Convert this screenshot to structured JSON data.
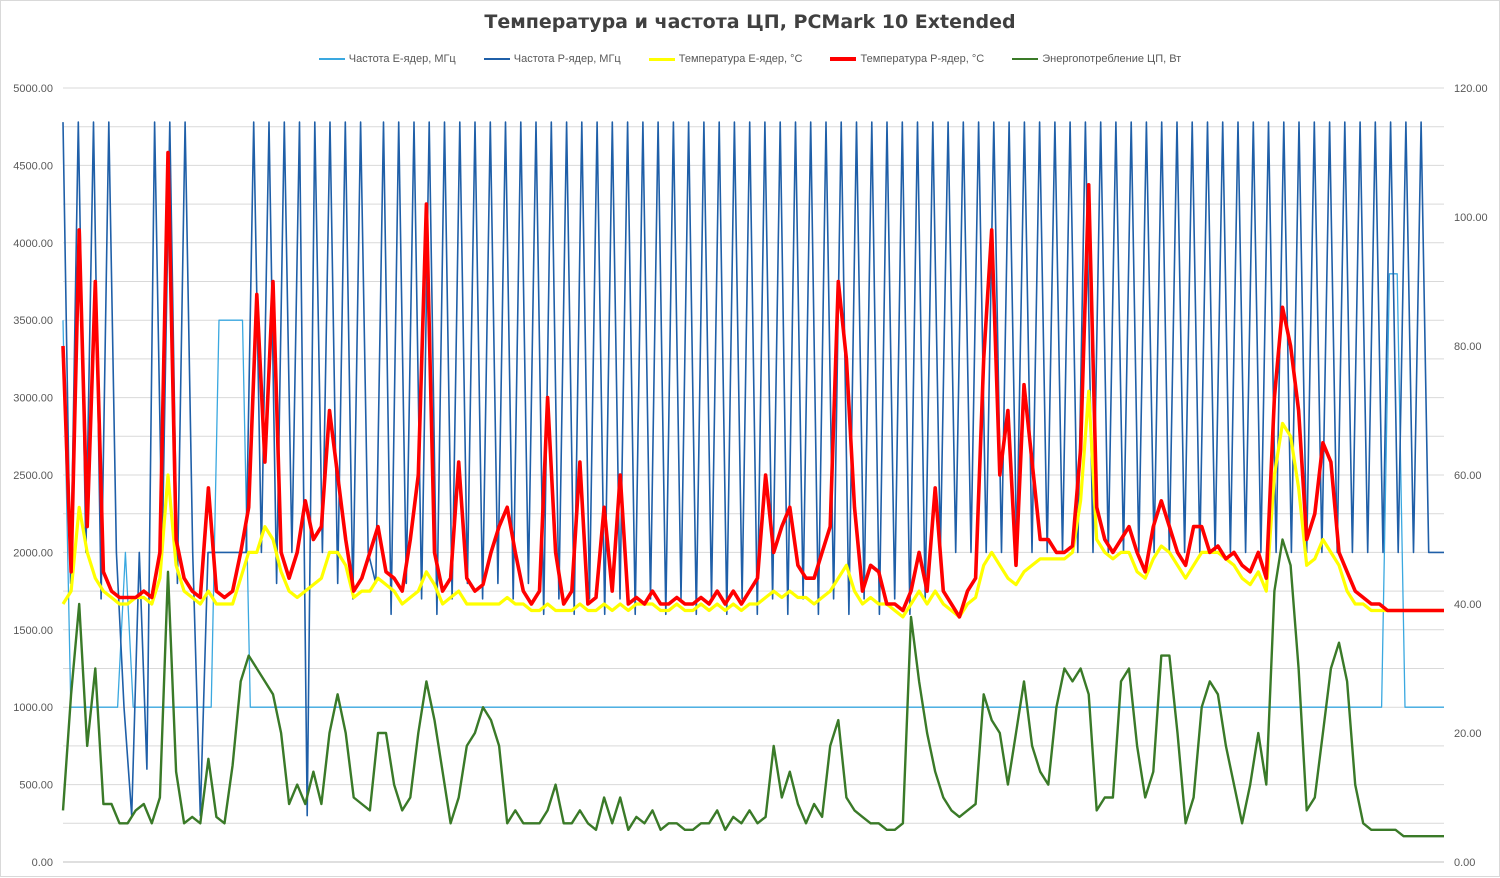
{
  "chart_data": {
    "type": "line",
    "title": "Температура и частота ЦП, PCMark 10 Extended",
    "xlabel": "",
    "ylabel": "",
    "y_left": {
      "ylim": [
        0,
        5000
      ],
      "ticks": [
        "0.00",
        "500.00",
        "1000.00",
        "1500.00",
        "2000.00",
        "2500.00",
        "3000.00",
        "3500.00",
        "4000.00",
        "4500.00",
        "5000.00"
      ]
    },
    "y_right": {
      "ylim": [
        0,
        120
      ],
      "ticks": [
        "0.00",
        "20.00",
        "40.00",
        "60.00",
        "80.00",
        "100.00",
        "120.00"
      ]
    },
    "grid": true,
    "legend_position": "top",
    "series": [
      {
        "name": "Частота E-ядер, МГц",
        "axis": "left",
        "color": "#3aa8e0",
        "values": [
          3500,
          1000,
          1000,
          1000,
          1000,
          1000,
          1000,
          1000,
          2000,
          1000,
          1000,
          1000,
          1000,
          1000,
          1000,
          1000,
          1000,
          1000,
          1000,
          1000,
          3500,
          3500,
          3500,
          3500,
          1000,
          1000,
          1000,
          1000,
          1000,
          1000,
          1000,
          1000,
          1000,
          1000,
          1000,
          1000,
          1000,
          1000,
          1000,
          1000,
          1000,
          1000,
          1000,
          1000,
          1000,
          1000,
          1000,
          1000,
          1000,
          1000,
          1000,
          1000,
          1000,
          1000,
          1000,
          1000,
          1000,
          1000,
          1000,
          1000,
          1000,
          1000,
          1000,
          1000,
          1000,
          1000,
          1000,
          1000,
          1000,
          1000,
          1000,
          1000,
          1000,
          1000,
          1000,
          1000,
          1000,
          1000,
          1000,
          1000,
          1000,
          1000,
          1000,
          1000,
          1000,
          1000,
          1000,
          1000,
          1000,
          1000,
          1000,
          1000,
          1000,
          1000,
          1000,
          1000,
          1000,
          1000,
          1000,
          1000,
          1000,
          1000,
          1000,
          1000,
          1000,
          1000,
          1000,
          1000,
          1000,
          1000,
          1000,
          1000,
          1000,
          1000,
          1000,
          1000,
          1000,
          1000,
          1000,
          1000,
          1000,
          1000,
          1000,
          1000,
          1000,
          1000,
          1000,
          1000,
          1000,
          1000,
          1000,
          1000,
          1000,
          1000,
          1000,
          1000,
          1000,
          1000,
          1000,
          1000,
          1000,
          1000,
          1000,
          1000,
          1000,
          1000,
          1000,
          1000,
          1000,
          1000,
          1000,
          1000,
          1000,
          1000,
          1000,
          1000,
          1000,
          1000,
          1000,
          1000,
          1000,
          1000,
          1000,
          1000,
          1000,
          1000,
          1000,
          1000,
          1000,
          1000,
          3800,
          3800,
          1000,
          1000,
          1000,
          1000,
          1000,
          1000
        ]
      },
      {
        "name": "Частота P-ядер, МГц",
        "axis": "left",
        "color": "#1f5fa8",
        "values": [
          4780,
          1800,
          4780,
          2000,
          4780,
          1700,
          4780,
          2000,
          1000,
          300,
          2000,
          600,
          4780,
          2000,
          4780,
          1800,
          4780,
          2000,
          300,
          2000,
          2000,
          2000,
          2000,
          2000,
          2000,
          4780,
          2000,
          4780,
          1800,
          4780,
          2000,
          4780,
          300,
          4780,
          2000,
          4780,
          1800,
          4780,
          1700,
          4780,
          2000,
          1800,
          4780,
          1600,
          4780,
          1800,
          4780,
          1700,
          4780,
          1600,
          4780,
          1700,
          4780,
          1800,
          4780,
          1700,
          4780,
          1800,
          4780,
          1700,
          4780,
          1800,
          4780,
          1600,
          4780,
          1700,
          4780,
          1600,
          4780,
          1700,
          4780,
          1600,
          4780,
          1700,
          4780,
          1600,
          4780,
          1700,
          4780,
          1600,
          4780,
          1700,
          4780,
          1600,
          4780,
          1700,
          4780,
          1600,
          4780,
          1700,
          4780,
          1600,
          4780,
          1700,
          4780,
          1600,
          4780,
          1700,
          4780,
          1600,
          4780,
          1700,
          4780,
          1600,
          4780,
          1700,
          4780,
          1600,
          4780,
          1700,
          4780,
          1600,
          4780,
          1700,
          4780,
          2000,
          4780,
          2000,
          4780,
          2000,
          4780,
          2000,
          4780,
          2000,
          4780,
          2000,
          4780,
          2000,
          4780,
          2000,
          4780,
          2000,
          4780,
          2000,
          4780,
          2000,
          4780,
          2000,
          4780,
          2000,
          4780,
          2000,
          4780,
          2000,
          4780,
          2000,
          4780,
          2000,
          4780,
          2000,
          4780,
          2000,
          4780,
          2000,
          4780,
          2000,
          4780,
          2000,
          4780,
          2000,
          4780,
          2000,
          4780,
          2000,
          4780,
          2000,
          4780,
          2000,
          4780,
          2000,
          4780,
          2000,
          4780,
          2000,
          4780,
          2000,
          4780,
          2000,
          4780,
          2000,
          2000,
          2000
        ]
      },
      {
        "name": "Температура E-ядер, °C",
        "axis": "right",
        "color": "#ffff00",
        "values": [
          40,
          42,
          55,
          48,
          44,
          42,
          41,
          40,
          40,
          41,
          41,
          40,
          44,
          60,
          46,
          42,
          41,
          40,
          42,
          40,
          40,
          40,
          44,
          48,
          48,
          52,
          50,
          45,
          42,
          41,
          42,
          43,
          44,
          48,
          48,
          46,
          41,
          42,
          42,
          44,
          43,
          42,
          40,
          41,
          42,
          45,
          43,
          40,
          41,
          42,
          40,
          40,
          40,
          40,
          40,
          41,
          40,
          40,
          39,
          39,
          40,
          39,
          39,
          39,
          40,
          39,
          39,
          40,
          39,
          40,
          39,
          40,
          40,
          40,
          39,
          39,
          40,
          39,
          39,
          40,
          39,
          40,
          39,
          40,
          39,
          40,
          40,
          41,
          42,
          41,
          42,
          41,
          41,
          40,
          41,
          42,
          44,
          46,
          42,
          40,
          41,
          40,
          40,
          39,
          38,
          40,
          42,
          40,
          42,
          40,
          39,
          38,
          40,
          41,
          46,
          48,
          46,
          44,
          43,
          45,
          46,
          47,
          47,
          47,
          47,
          48,
          56,
          73,
          50,
          48,
          47,
          48,
          48,
          45,
          44,
          47,
          49,
          48,
          46,
          44,
          46,
          48,
          48,
          48,
          47,
          46,
          44,
          43,
          45,
          42,
          60,
          68,
          66,
          58,
          46,
          47,
          50,
          48,
          46,
          42,
          40,
          40,
          39,
          39,
          39,
          39,
          39,
          39,
          39,
          39,
          39,
          39
        ]
      },
      {
        "name": "Температура P-ядер, °C",
        "axis": "right",
        "color": "#ff0000",
        "values": [
          80,
          45,
          98,
          52,
          90,
          45,
          42,
          41,
          41,
          41,
          42,
          41,
          48,
          110,
          50,
          44,
          42,
          41,
          58,
          42,
          41,
          42,
          48,
          55,
          88,
          62,
          90,
          48,
          44,
          48,
          56,
          50,
          52,
          70,
          60,
          50,
          42,
          44,
          48,
          52,
          45,
          44,
          42,
          50,
          60,
          102,
          48,
          42,
          44,
          62,
          44,
          42,
          43,
          48,
          52,
          55,
          48,
          42,
          40,
          42,
          72,
          48,
          40,
          42,
          62,
          40,
          41,
          55,
          42,
          60,
          40,
          41,
          40,
          42,
          40,
          40,
          41,
          40,
          40,
          41,
          40,
          42,
          40,
          42,
          40,
          42,
          44,
          60,
          48,
          52,
          55,
          46,
          44,
          44,
          48,
          52,
          90,
          78,
          55,
          42,
          46,
          45,
          40,
          40,
          39,
          42,
          48,
          42,
          58,
          42,
          40,
          38,
          42,
          44,
          78,
          98,
          60,
          70,
          46,
          74,
          62,
          50,
          50,
          48,
          48,
          49,
          64,
          105,
          55,
          50,
          48,
          50,
          52,
          48,
          45,
          52,
          56,
          52,
          48,
          46,
          52,
          52,
          48,
          49,
          47,
          48,
          46,
          45,
          48,
          44,
          72,
          86,
          80,
          70,
          50,
          54,
          65,
          62,
          48,
          45,
          42,
          41,
          40,
          40,
          39,
          39,
          39,
          39,
          39,
          39,
          39,
          39
        ]
      },
      {
        "name": "Энергопотребление ЦП, Вт",
        "axis": "right",
        "color": "#3a7a28",
        "values": [
          8,
          26,
          40,
          18,
          30,
          9,
          9,
          6,
          6,
          8,
          9,
          6,
          10,
          45,
          14,
          6,
          7,
          6,
          16,
          7,
          6,
          15,
          28,
          32,
          30,
          28,
          26,
          20,
          9,
          12,
          9,
          14,
          9,
          20,
          26,
          20,
          10,
          9,
          8,
          20,
          20,
          12,
          8,
          10,
          20,
          28,
          22,
          14,
          6,
          10,
          18,
          20,
          24,
          22,
          18,
          6,
          8,
          6,
          6,
          6,
          8,
          12,
          6,
          6,
          8,
          6,
          5,
          10,
          6,
          10,
          5,
          7,
          6,
          8,
          5,
          6,
          6,
          5,
          5,
          6,
          6,
          8,
          5,
          7,
          6,
          8,
          6,
          7,
          18,
          10,
          14,
          9,
          6,
          9,
          7,
          18,
          22,
          10,
          8,
          7,
          6,
          6,
          5,
          5,
          6,
          38,
          28,
          20,
          14,
          10,
          8,
          7,
          8,
          9,
          26,
          22,
          20,
          12,
          20,
          28,
          18,
          14,
          12,
          24,
          30,
          28,
          30,
          26,
          8,
          10,
          10,
          28,
          30,
          18,
          10,
          14,
          32,
          32,
          20,
          6,
          10,
          24,
          28,
          26,
          18,
          12,
          6,
          12,
          20,
          12,
          42,
          50,
          46,
          30,
          8,
          10,
          20,
          30,
          34,
          28,
          12,
          6,
          5,
          5,
          5,
          5,
          4,
          4,
          4,
          4,
          4,
          4
        ]
      }
    ]
  }
}
